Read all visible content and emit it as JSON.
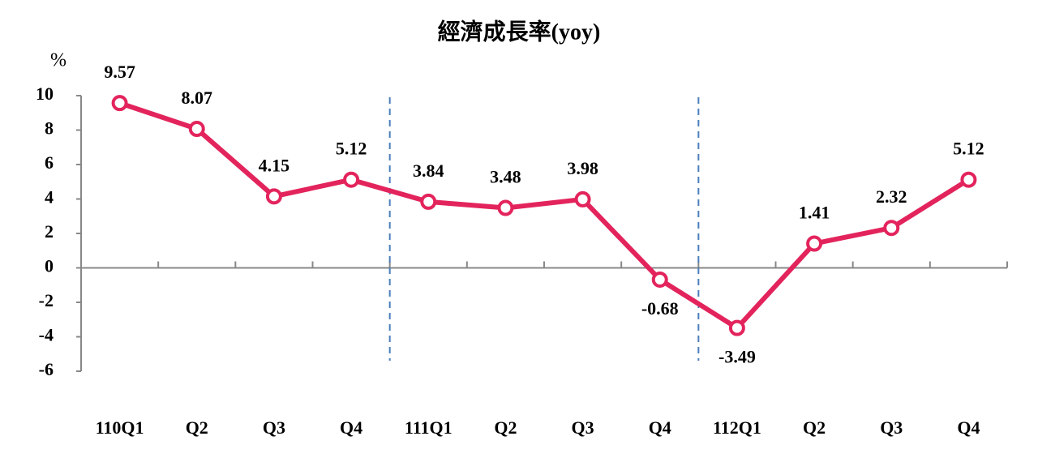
{
  "chart_data": {
    "type": "line",
    "title": "經濟成長率(yoy)",
    "y_label": "%",
    "categories": [
      "110Q1",
      "Q2",
      "Q3",
      "Q4",
      "111Q1",
      "Q2",
      "Q3",
      "Q4",
      "112Q1",
      "Q2",
      "Q3",
      "Q4"
    ],
    "series": [
      {
        "name": "經濟成長率",
        "color": "#e3245c",
        "values": [
          9.57,
          8.07,
          4.15,
          5.12,
          3.84,
          3.48,
          3.98,
          -0.68,
          -3.49,
          1.41,
          2.32,
          5.12
        ]
      }
    ],
    "ylim": [
      -6,
      10
    ],
    "yticks": [
      -6,
      -4,
      -2,
      0,
      2,
      4,
      6,
      8,
      10
    ],
    "grid": false
  }
}
